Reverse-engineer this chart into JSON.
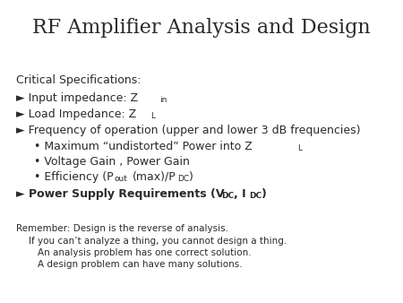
{
  "title": "RF Amplifier Analysis and Design",
  "bg_color": "#ffffff",
  "text_color": "#2a2a2a",
  "title_fontsize": 16,
  "body_fontsize": 9,
  "sub_fontsize": 6.5,
  "small_fontsize": 7.5,
  "fig_width": 4.5,
  "fig_height": 3.38,
  "dpi": 100
}
